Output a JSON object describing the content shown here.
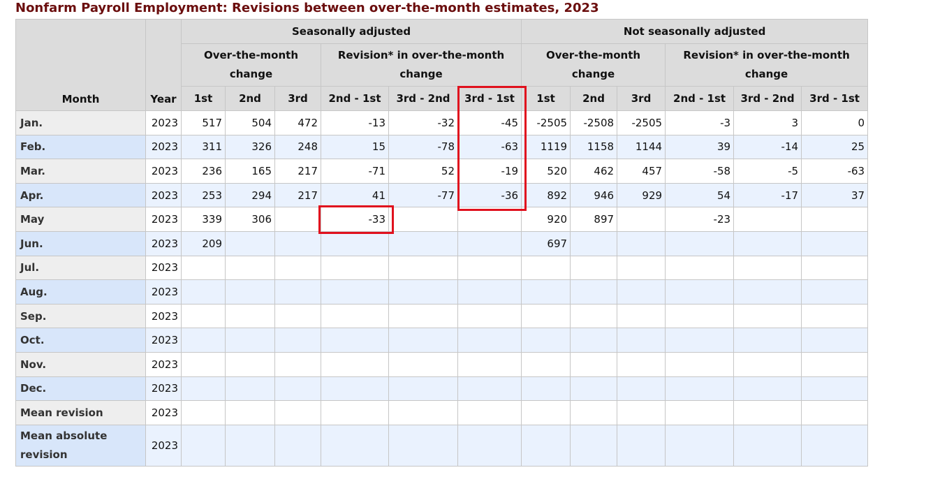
{
  "title": "Nonfarm Payroll Employment: Revisions between over-the-month estimates, 2023",
  "headers": {
    "month": "Month",
    "year": "Year",
    "sa": "Seasonally adjusted",
    "nsa": "Not seasonally adjusted",
    "otm_change": "Over-the-month change",
    "revision": "Revision* in over-the-month change",
    "first": "1st",
    "second": "2nd",
    "third": "3rd",
    "rev_2_1": "2nd - 1st",
    "rev_3_2": "3rd - 2nd",
    "rev_3_1": "3rd - 1st"
  },
  "rows": [
    {
      "month": "Jan.",
      "year": "2023",
      "values": [
        "517",
        "504",
        "472",
        "-13",
        "-32",
        "-45",
        "-2505",
        "-2508",
        "-2505",
        "-3",
        "3",
        "0"
      ]
    },
    {
      "month": "Feb.",
      "year": "2023",
      "values": [
        "311",
        "326",
        "248",
        "15",
        "-78",
        "-63",
        "1119",
        "1158",
        "1144",
        "39",
        "-14",
        "25"
      ]
    },
    {
      "month": "Mar.",
      "year": "2023",
      "values": [
        "236",
        "165",
        "217",
        "-71",
        "52",
        "-19",
        "520",
        "462",
        "457",
        "-58",
        "-5",
        "-63"
      ]
    },
    {
      "month": "Apr.",
      "year": "2023",
      "values": [
        "253",
        "294",
        "217",
        "41",
        "-77",
        "-36",
        "892",
        "946",
        "929",
        "54",
        "-17",
        "37"
      ]
    },
    {
      "month": "May",
      "year": "2023",
      "values": [
        "339",
        "306",
        "",
        "-33",
        "",
        "",
        "920",
        "897",
        "",
        "-23",
        "",
        ""
      ]
    },
    {
      "month": "Jun.",
      "year": "2023",
      "values": [
        "209",
        "",
        "",
        "",
        "",
        "",
        "697",
        "",
        "",
        "",
        "",
        ""
      ]
    },
    {
      "month": "Jul.",
      "year": "2023",
      "values": [
        "",
        "",
        "",
        "",
        "",
        "",
        "",
        "",
        "",
        "",
        "",
        ""
      ]
    },
    {
      "month": "Aug.",
      "year": "2023",
      "values": [
        "",
        "",
        "",
        "",
        "",
        "",
        "",
        "",
        "",
        "",
        "",
        ""
      ]
    },
    {
      "month": "Sep.",
      "year": "2023",
      "values": [
        "",
        "",
        "",
        "",
        "",
        "",
        "",
        "",
        "",
        "",
        "",
        ""
      ]
    },
    {
      "month": "Oct.",
      "year": "2023",
      "values": [
        "",
        "",
        "",
        "",
        "",
        "",
        "",
        "",
        "",
        "",
        "",
        ""
      ]
    },
    {
      "month": "Nov.",
      "year": "2023",
      "values": [
        "",
        "",
        "",
        "",
        "",
        "",
        "",
        "",
        "",
        "",
        "",
        ""
      ]
    },
    {
      "month": "Dec.",
      "year": "2023",
      "values": [
        "",
        "",
        "",
        "",
        "",
        "",
        "",
        "",
        "",
        "",
        "",
        ""
      ]
    },
    {
      "month": "Mean revision",
      "year": "2023",
      "values": [
        "",
        "",
        "",
        "",
        "",
        "",
        "",
        "",
        "",
        "",
        "",
        ""
      ]
    },
    {
      "month": "Mean absolute revision",
      "year": "2023",
      "values": [
        "",
        "",
        "",
        "",
        "",
        "",
        "",
        "",
        "",
        "",
        "",
        ""
      ]
    }
  ],
  "highlight_color": "#e0111e"
}
